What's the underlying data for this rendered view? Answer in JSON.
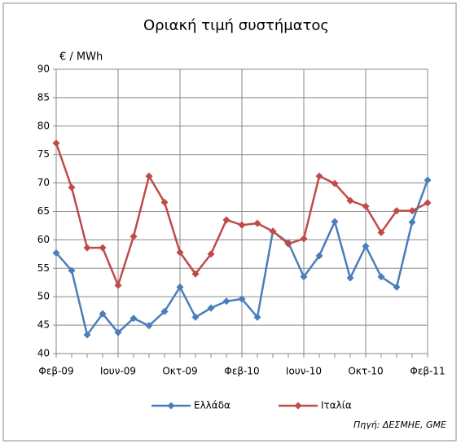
{
  "chart_data": {
    "type": "line",
    "title": "Οριακή τιμή συστήματος",
    "y_label": "€ / MWh",
    "source": "Πηγή: ΔΕΣΜΗΕ, GME",
    "categories": [
      "Φεβ-09",
      null,
      null,
      null,
      "Ιουν-09",
      null,
      null,
      null,
      "Οκτ-09",
      null,
      null,
      null,
      "Φεβ-10",
      null,
      null,
      null,
      "Ιουν-10",
      null,
      null,
      null,
      "Οκτ-10",
      null,
      null,
      null,
      "Φεβ-11"
    ],
    "series": [
      {
        "name": "Ελλάδα",
        "color": "#4a7ebb",
        "values": [
          57.7,
          54.6,
          43.3,
          47.0,
          43.7,
          46.2,
          44.9,
          47.4,
          51.7,
          46.4,
          48.0,
          49.2,
          49.6,
          46.4,
          61.5,
          59.5,
          53.5,
          57.2,
          63.2,
          53.3,
          58.9,
          53.5,
          51.7,
          63.1,
          70.5
        ]
      },
      {
        "name": "Ιταλία",
        "color": "#be4b48",
        "values": [
          77.0,
          69.2,
          58.6,
          58.6,
          52.0,
          60.6,
          71.2,
          66.6,
          57.8,
          54.0,
          57.5,
          63.5,
          62.6,
          62.9,
          61.5,
          59.3,
          60.2,
          71.2,
          69.9,
          66.9,
          65.9,
          61.3,
          65.1,
          65.1,
          66.5
        ]
      }
    ],
    "ylim": [
      40,
      90
    ],
    "yticks": [
      40,
      45,
      50,
      55,
      60,
      65,
      70,
      75,
      80,
      85,
      90
    ],
    "grid": true,
    "legend": "bottom"
  }
}
